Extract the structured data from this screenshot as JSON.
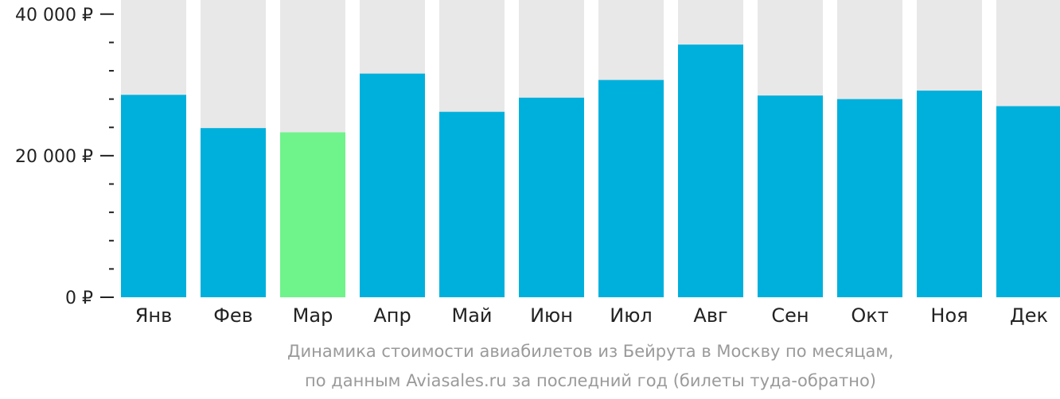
{
  "chart_data": {
    "type": "bar",
    "categories": [
      "Янв",
      "Фев",
      "Мар",
      "Апр",
      "Май",
      "Июн",
      "Июл",
      "Авг",
      "Сен",
      "Окт",
      "Ноя",
      "Дек"
    ],
    "values": [
      28600,
      23900,
      23300,
      31600,
      26200,
      28200,
      30700,
      35700,
      28500,
      28000,
      29200,
      27000
    ],
    "ylim": [
      0,
      42000
    ],
    "yticks": [
      0,
      20000,
      40000
    ],
    "ytick_labels": [
      "0 ₽",
      "20 000 ₽",
      "40 000 ₽"
    ],
    "minor_ytick_step": 4000,
    "highlight_index": 2,
    "colors": {
      "bar": "#00b0dc",
      "highlight": "#6ef48a",
      "background_bar": "#e8e8e8",
      "axis": "#222222"
    },
    "title": "",
    "xlabel": "",
    "ylabel": "",
    "grid": false
  },
  "caption": {
    "line1": "Динамика стоимости авиабилетов из Бейрута в Москву по месяцам,",
    "line2": "по данным Aviasales.ru за последний год (билеты туда-обратно)"
  }
}
